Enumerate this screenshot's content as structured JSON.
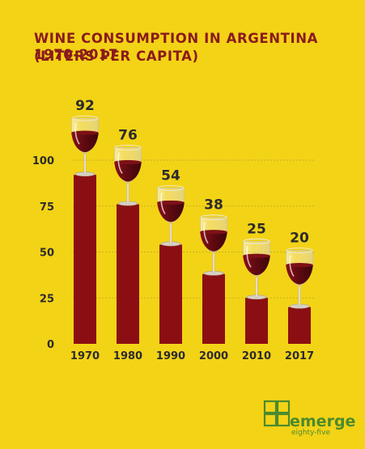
{
  "title_lines": [
    "WINE CONSUMPTION IN ARGENTINA 1970-2017",
    "(LITERS PER CAPITA)"
  ],
  "colors": {
    "background": "#f3d316",
    "bar": "#8b0f12",
    "title": "#8a1a1e",
    "text": "#2b2b2b",
    "gridline": "#b9a431",
    "wine": "#6a0c12",
    "logo": "#4c8a2c"
  },
  "chart_data": {
    "type": "bar",
    "title": "WINE CONSUMPTION IN ARGENTINA 1970-2017 (LITERS PER CAPITA)",
    "categories": [
      "1970",
      "1980",
      "1990",
      "2000",
      "2010",
      "2017"
    ],
    "values": [
      92,
      76,
      54,
      38,
      25,
      20
    ],
    "data_labels": [
      "92",
      "76",
      "54",
      "38",
      "25",
      "20"
    ],
    "yticks": [
      0,
      25,
      50,
      75,
      100
    ],
    "ylim": [
      0,
      100
    ],
    "xlabel": "",
    "ylabel": "",
    "grid": true,
    "legend": "none"
  },
  "logo": {
    "name": "emerge",
    "tagline": "eighty-five"
  }
}
